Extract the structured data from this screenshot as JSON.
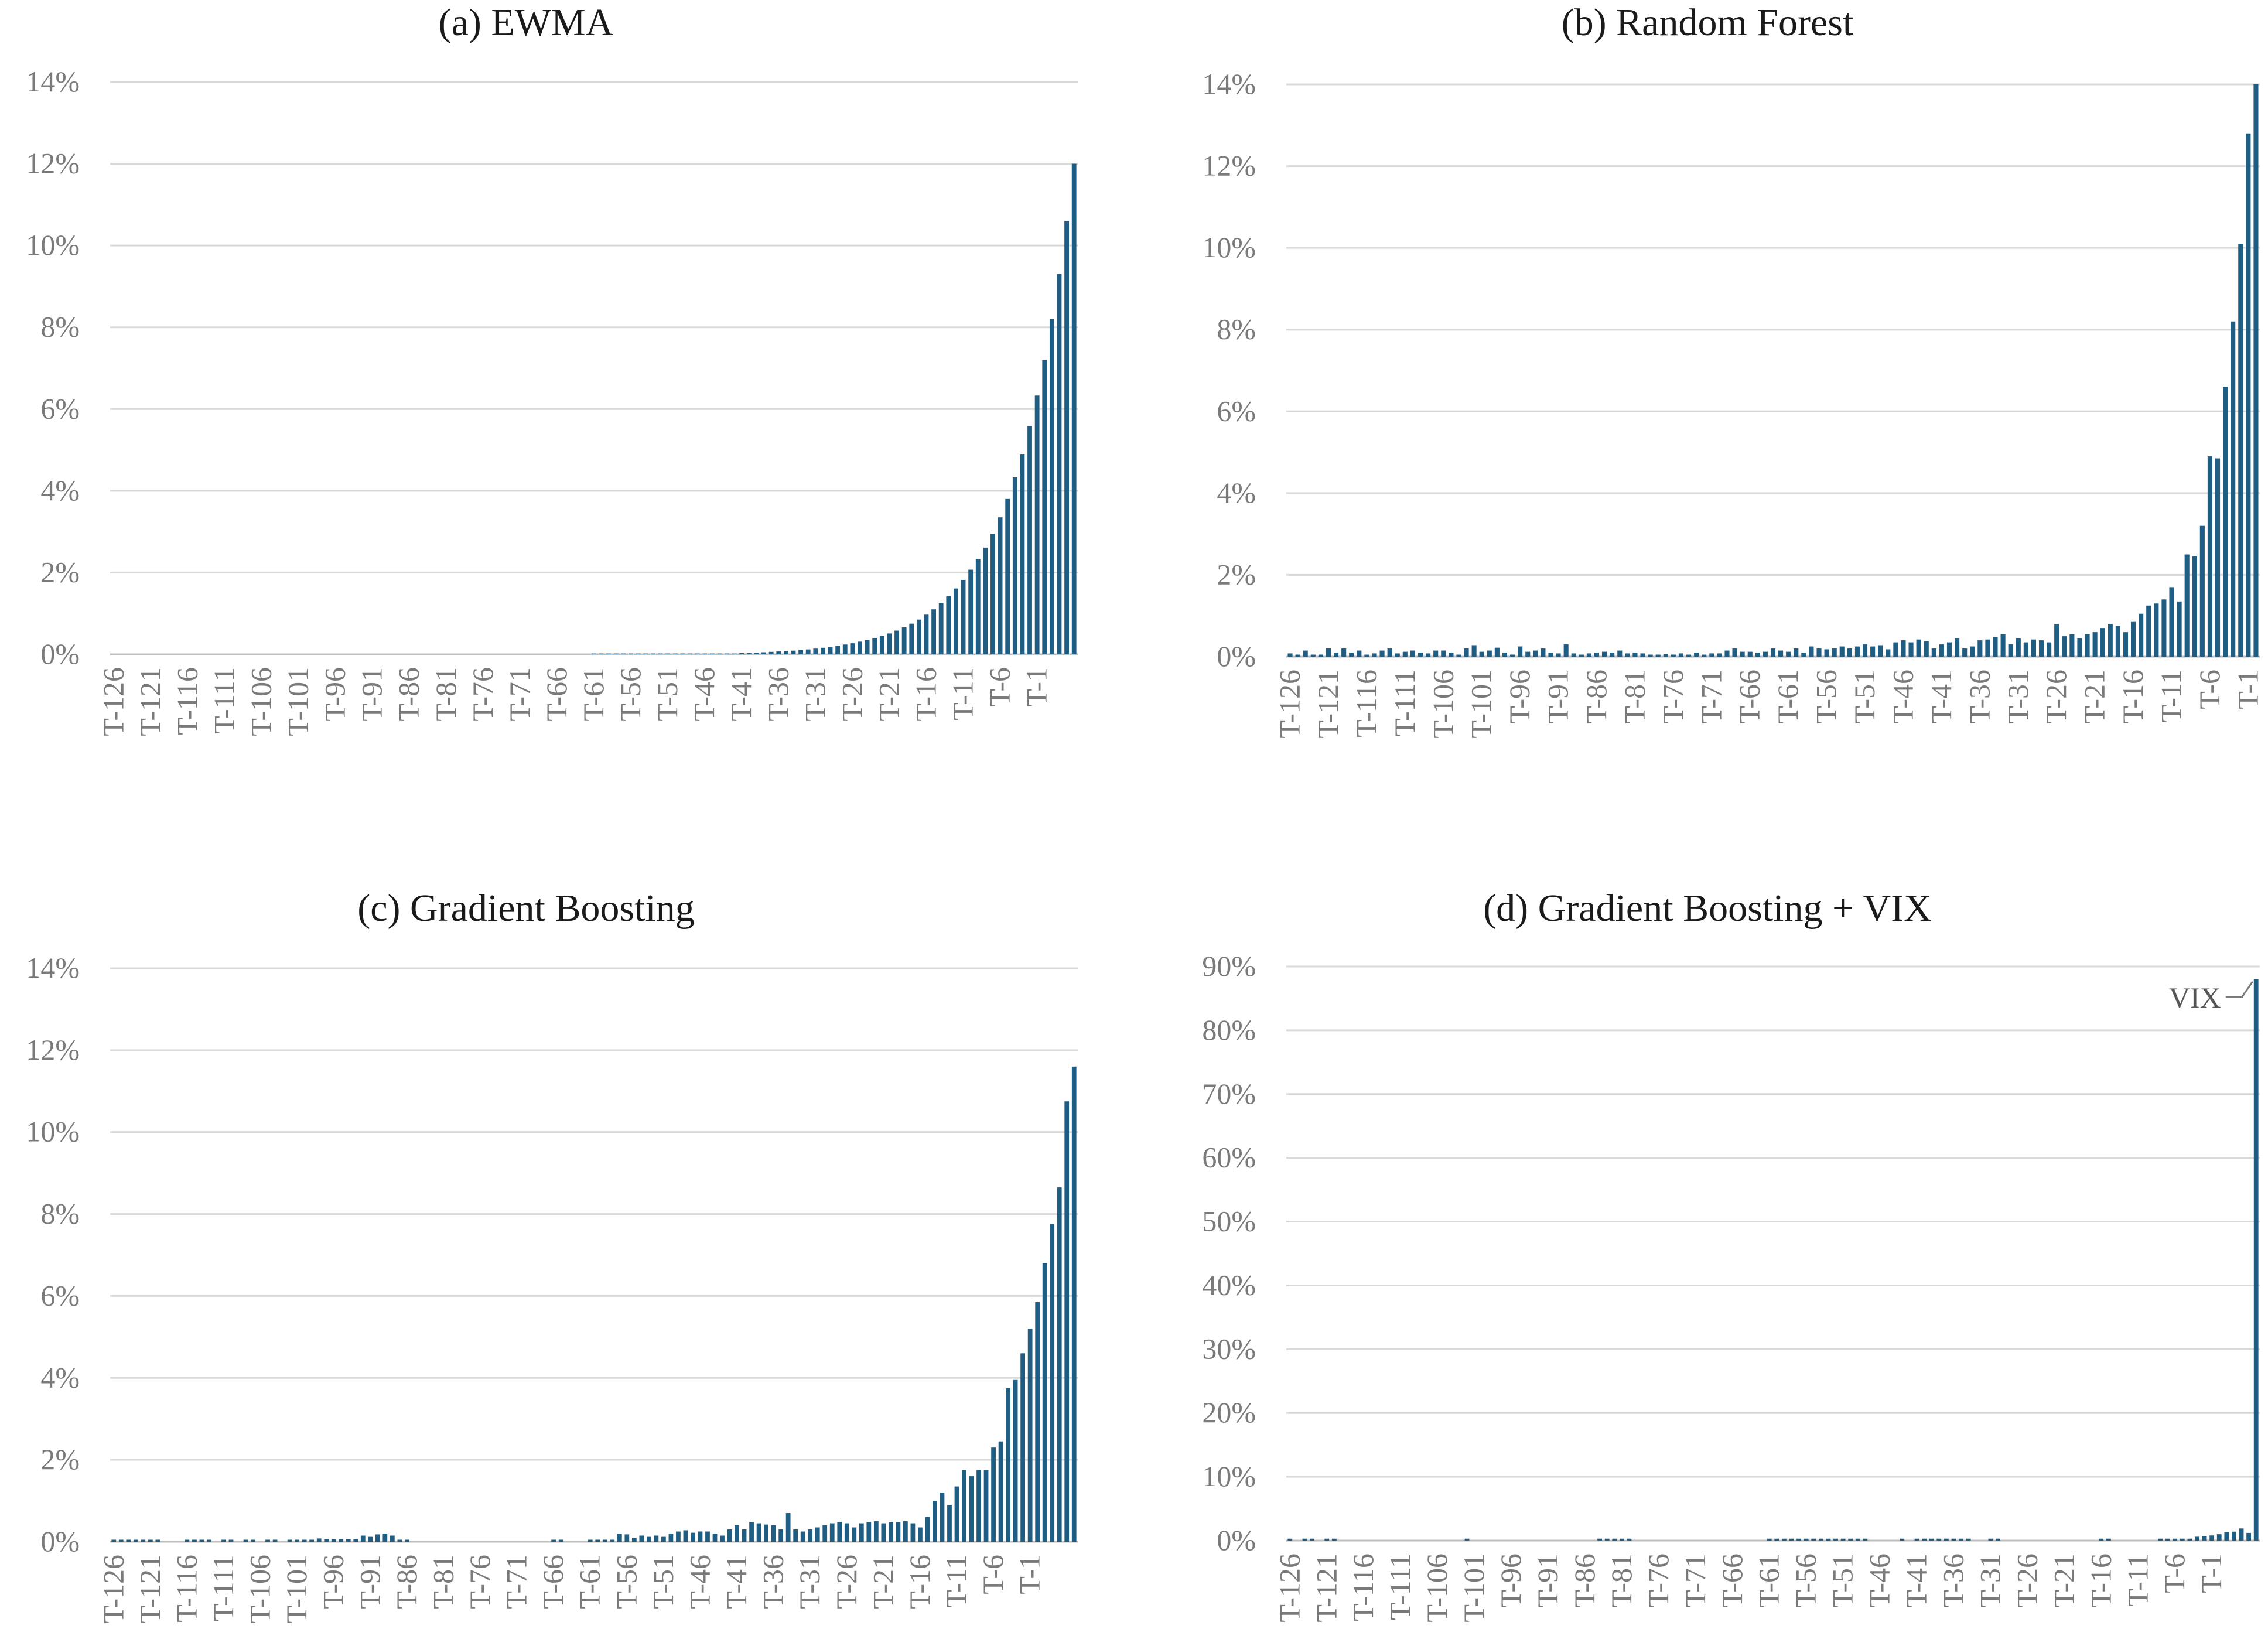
{
  "colors": {
    "bar": "#1f5d82",
    "grid": "#d9d9d9",
    "axis": "#bfbfbf"
  },
  "chart_data": [
    {
      "type": "bar",
      "title": "(a) EWMA",
      "y_unit": "%",
      "ylim": [
        0,
        14
      ],
      "yticks": [
        0,
        2,
        4,
        6,
        8,
        10,
        12,
        14
      ],
      "ytick_labels": [
        "0%",
        "2%",
        "4%",
        "6%",
        "8%",
        "10%",
        "12%",
        "14%"
      ],
      "categories_start": 126,
      "category_prefix": "T-",
      "xtick_labels": [
        "T-126",
        "T-121",
        "T-116",
        "T-111",
        "T-106",
        "T-101",
        "T-96",
        "T-91",
        "T-86",
        "T-81",
        "T-76",
        "T-71",
        "T-66",
        "T-61",
        "T-56",
        "T-51",
        "T-46",
        "T-41",
        "T-36",
        "T-31",
        "T-26",
        "T-21",
        "T-16",
        "T-11",
        "T-6",
        "T-1"
      ],
      "values": [
        0,
        0,
        0,
        0,
        0,
        0,
        0,
        0,
        0,
        0,
        0,
        0,
        0,
        0,
        0,
        0,
        0,
        0,
        0,
        0,
        0,
        0,
        0,
        0,
        0,
        0,
        0,
        0,
        0,
        0,
        0,
        0,
        0,
        0,
        0,
        0,
        0,
        0,
        0,
        0,
        0,
        0,
        0,
        0,
        0,
        0,
        0,
        0,
        0,
        0,
        0,
        0,
        0,
        0,
        0,
        0,
        0,
        0,
        0,
        0,
        0,
        0,
        0,
        0,
        0,
        0.02,
        0.02,
        0.02,
        0.02,
        0.02,
        0.02,
        0.02,
        0.02,
        0.02,
        0.02,
        0.02,
        0.02,
        0.02,
        0.02,
        0.02,
        0.02,
        0.02,
        0.02,
        0.02,
        0.02,
        0.03,
        0.03,
        0.04,
        0.05,
        0.06,
        0.07,
        0.08,
        0.09,
        0.11,
        0.12,
        0.14,
        0.16,
        0.18,
        0.21,
        0.24,
        0.27,
        0.31,
        0.35,
        0.4,
        0.45,
        0.51,
        0.58,
        0.66,
        0.75,
        0.85,
        0.97,
        1.1,
        1.25,
        1.42,
        1.61,
        1.82,
        2.07,
        2.33,
        2.61,
        2.95,
        3.35,
        3.8,
        4.33,
        4.9,
        5.58,
        6.33,
        7.2,
        8.2,
        9.3,
        10.6,
        12.0
      ]
    },
    {
      "type": "bar",
      "title": "(b) Random Forest",
      "y_unit": "%",
      "ylim": [
        0,
        14
      ],
      "yticks": [
        0,
        2,
        4,
        6,
        8,
        10,
        12,
        14
      ],
      "ytick_labels": [
        "0%",
        "2%",
        "4%",
        "6%",
        "8%",
        "10%",
        "12%",
        "14%"
      ],
      "categories_start": 126,
      "category_prefix": "T-",
      "xtick_labels": [
        "T-126",
        "T-121",
        "T-116",
        "T-111",
        "T-106",
        "T-101",
        "T-96",
        "T-91",
        "T-86",
        "T-81",
        "T-76",
        "T-71",
        "T-66",
        "T-61",
        "T-56",
        "T-51",
        "T-46",
        "T-41",
        "T-36",
        "T-31",
        "T-26",
        "T-21",
        "T-16",
        "T-11",
        "T-6",
        "T-1"
      ],
      "values": [
        0.08,
        0.05,
        0.15,
        0.05,
        0.05,
        0.2,
        0.1,
        0.2,
        0.1,
        0.15,
        0.05,
        0.08,
        0.15,
        0.2,
        0.08,
        0.12,
        0.15,
        0.1,
        0.08,
        0.15,
        0.15,
        0.1,
        0.05,
        0.2,
        0.28,
        0.12,
        0.15,
        0.22,
        0.1,
        0.05,
        0.25,
        0.12,
        0.15,
        0.2,
        0.1,
        0.08,
        0.3,
        0.08,
        0.05,
        0.08,
        0.1,
        0.12,
        0.1,
        0.15,
        0.08,
        0.1,
        0.08,
        0.05,
        0.05,
        0.06,
        0.05,
        0.08,
        0.05,
        0.1,
        0.05,
        0.08,
        0.08,
        0.15,
        0.2,
        0.12,
        0.12,
        0.1,
        0.12,
        0.2,
        0.15,
        0.12,
        0.2,
        0.1,
        0.25,
        0.2,
        0.18,
        0.2,
        0.25,
        0.2,
        0.25,
        0.3,
        0.25,
        0.28,
        0.18,
        0.35,
        0.4,
        0.35,
        0.42,
        0.38,
        0.2,
        0.3,
        0.35,
        0.45,
        0.2,
        0.25,
        0.4,
        0.42,
        0.48,
        0.55,
        0.3,
        0.45,
        0.35,
        0.42,
        0.4,
        0.35,
        0.8,
        0.5,
        0.55,
        0.45,
        0.55,
        0.6,
        0.7,
        0.8,
        0.75,
        0.6,
        0.85,
        1.05,
        1.25,
        1.3,
        1.4,
        1.7,
        1.35,
        2.5,
        2.45,
        3.2,
        4.9,
        4.85,
        6.6,
        8.2,
        10.1,
        12.8,
        14.0
      ]
    },
    {
      "type": "bar",
      "title": "(c) Gradient Boosting",
      "y_unit": "%",
      "ylim": [
        0,
        14
      ],
      "yticks": [
        0,
        2,
        4,
        6,
        8,
        10,
        12,
        14
      ],
      "ytick_labels": [
        "0%",
        "2%",
        "4%",
        "6%",
        "8%",
        "10%",
        "12%",
        "14%"
      ],
      "categories_start": 126,
      "category_prefix": "T-",
      "xtick_labels": [
        "T-126",
        "T-121",
        "T-116",
        "T-111",
        "T-106",
        "T-101",
        "T-96",
        "T-91",
        "T-86",
        "T-81",
        "T-76",
        "T-71",
        "T-66",
        "T-61",
        "T-56",
        "T-51",
        "T-46",
        "T-41",
        "T-36",
        "T-31",
        "T-26",
        "T-21",
        "T-16",
        "T-11",
        "T-6",
        "T-1"
      ],
      "values": [
        0.05,
        0.05,
        0.05,
        0.05,
        0.05,
        0.05,
        0.05,
        0,
        0,
        0,
        0.05,
        0.05,
        0.05,
        0.05,
        0,
        0.05,
        0.05,
        0,
        0.05,
        0.05,
        0,
        0.05,
        0.05,
        0,
        0.05,
        0.05,
        0.05,
        0.05,
        0.08,
        0.06,
        0.06,
        0.06,
        0.06,
        0.06,
        0.15,
        0.12,
        0.18,
        0.2,
        0.15,
        0.05,
        0.05,
        0,
        0,
        0,
        0,
        0,
        0,
        0,
        0,
        0,
        0,
        0,
        0,
        0,
        0,
        0,
        0,
        0,
        0,
        0,
        0.05,
        0.05,
        0,
        0,
        0,
        0.05,
        0.05,
        0.05,
        0.05,
        0.2,
        0.18,
        0.1,
        0.15,
        0.12,
        0.15,
        0.12,
        0.2,
        0.25,
        0.28,
        0.22,
        0.25,
        0.25,
        0.2,
        0.15,
        0.3,
        0.4,
        0.3,
        0.48,
        0.45,
        0.42,
        0.4,
        0.3,
        0.7,
        0.3,
        0.25,
        0.3,
        0.35,
        0.4,
        0.45,
        0.48,
        0.45,
        0.35,
        0.45,
        0.48,
        0.5,
        0.45,
        0.48,
        0.48,
        0.5,
        0.45,
        0.35,
        0.6,
        1.0,
        1.2,
        0.9,
        1.35,
        1.75,
        1.6,
        1.75,
        1.75,
        2.3,
        2.45,
        3.75,
        3.95,
        4.6,
        5.2,
        5.85,
        6.8,
        7.75,
        8.65,
        10.75,
        11.6
      ]
    },
    {
      "type": "bar",
      "title": "(d) Gradient Boosting + VIX",
      "y_unit": "%",
      "ylim": [
        0,
        90
      ],
      "yticks": [
        0,
        10,
        20,
        30,
        40,
        50,
        60,
        70,
        80,
        90
      ],
      "ytick_labels": [
        "0%",
        "10%",
        "20%",
        "30%",
        "40%",
        "50%",
        "60%",
        "70%",
        "80%",
        "90%"
      ],
      "categories_start": 126,
      "category_prefix": "T-",
      "xtick_labels": [
        "T-126",
        "T-121",
        "T-116",
        "T-111",
        "T-106",
        "T-101",
        "T-96",
        "T-91",
        "T-86",
        "T-81",
        "T-76",
        "T-71",
        "T-66",
        "T-61",
        "T-56",
        "T-51",
        "T-46",
        "T-41",
        "T-36",
        "T-31",
        "T-26",
        "T-21",
        "T-16",
        "T-11",
        "T-6",
        "T-1"
      ],
      "annotation": {
        "text": "VIX",
        "target": "last"
      },
      "values": [
        0.3,
        0,
        0.3,
        0.3,
        0,
        0.3,
        0.3,
        0,
        0,
        0,
        0,
        0,
        0,
        0,
        0,
        0,
        0,
        0,
        0,
        0,
        0,
        0,
        0,
        0,
        0.3,
        0,
        0,
        0,
        0,
        0,
        0,
        0,
        0,
        0,
        0,
        0,
        0,
        0,
        0,
        0,
        0,
        0,
        0.3,
        0.3,
        0.3,
        0.3,
        0.3,
        0,
        0,
        0,
        0,
        0,
        0,
        0,
        0,
        0,
        0,
        0,
        0,
        0,
        0,
        0,
        0,
        0,
        0,
        0.3,
        0.3,
        0.3,
        0.3,
        0.3,
        0.3,
        0.3,
        0.3,
        0.3,
        0.3,
        0.3,
        0.3,
        0.3,
        0.3,
        0,
        0,
        0,
        0,
        0.3,
        0,
        0.3,
        0.3,
        0.3,
        0.3,
        0.3,
        0.3,
        0.3,
        0.3,
        0,
        0,
        0.3,
        0.3,
        0,
        0,
        0,
        0,
        0,
        0,
        0,
        0,
        0,
        0,
        0,
        0,
        0,
        0.3,
        0.3,
        0,
        0,
        0,
        0,
        0,
        0,
        0.3,
        0.3,
        0.3,
        0.3,
        0.3,
        0.6,
        0.7,
        0.8,
        1.0,
        1.3,
        1.4,
        1.9,
        1.2,
        88.0
      ]
    }
  ]
}
